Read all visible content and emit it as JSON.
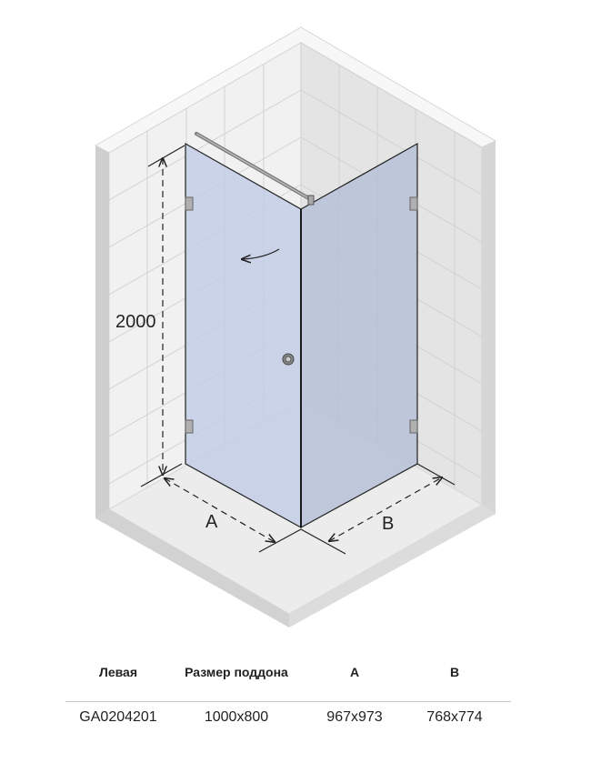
{
  "diagram": {
    "height_label": "2000",
    "width_a_label": "A",
    "width_b_label": "B",
    "colors": {
      "glass_left": "#c4cee6",
      "glass_right": "#b7c1d8",
      "wall_left": "#f1f1f1",
      "wall_right": "#e4e4e4",
      "floor": "#ebebeb",
      "edge": "#cfcfcf"
    }
  },
  "table": {
    "headers": [
      "Левая",
      "Размер поддона",
      "A",
      "B"
    ],
    "rows": [
      [
        "GA0204201",
        "1000x800",
        "967x973",
        "768x774"
      ]
    ]
  }
}
